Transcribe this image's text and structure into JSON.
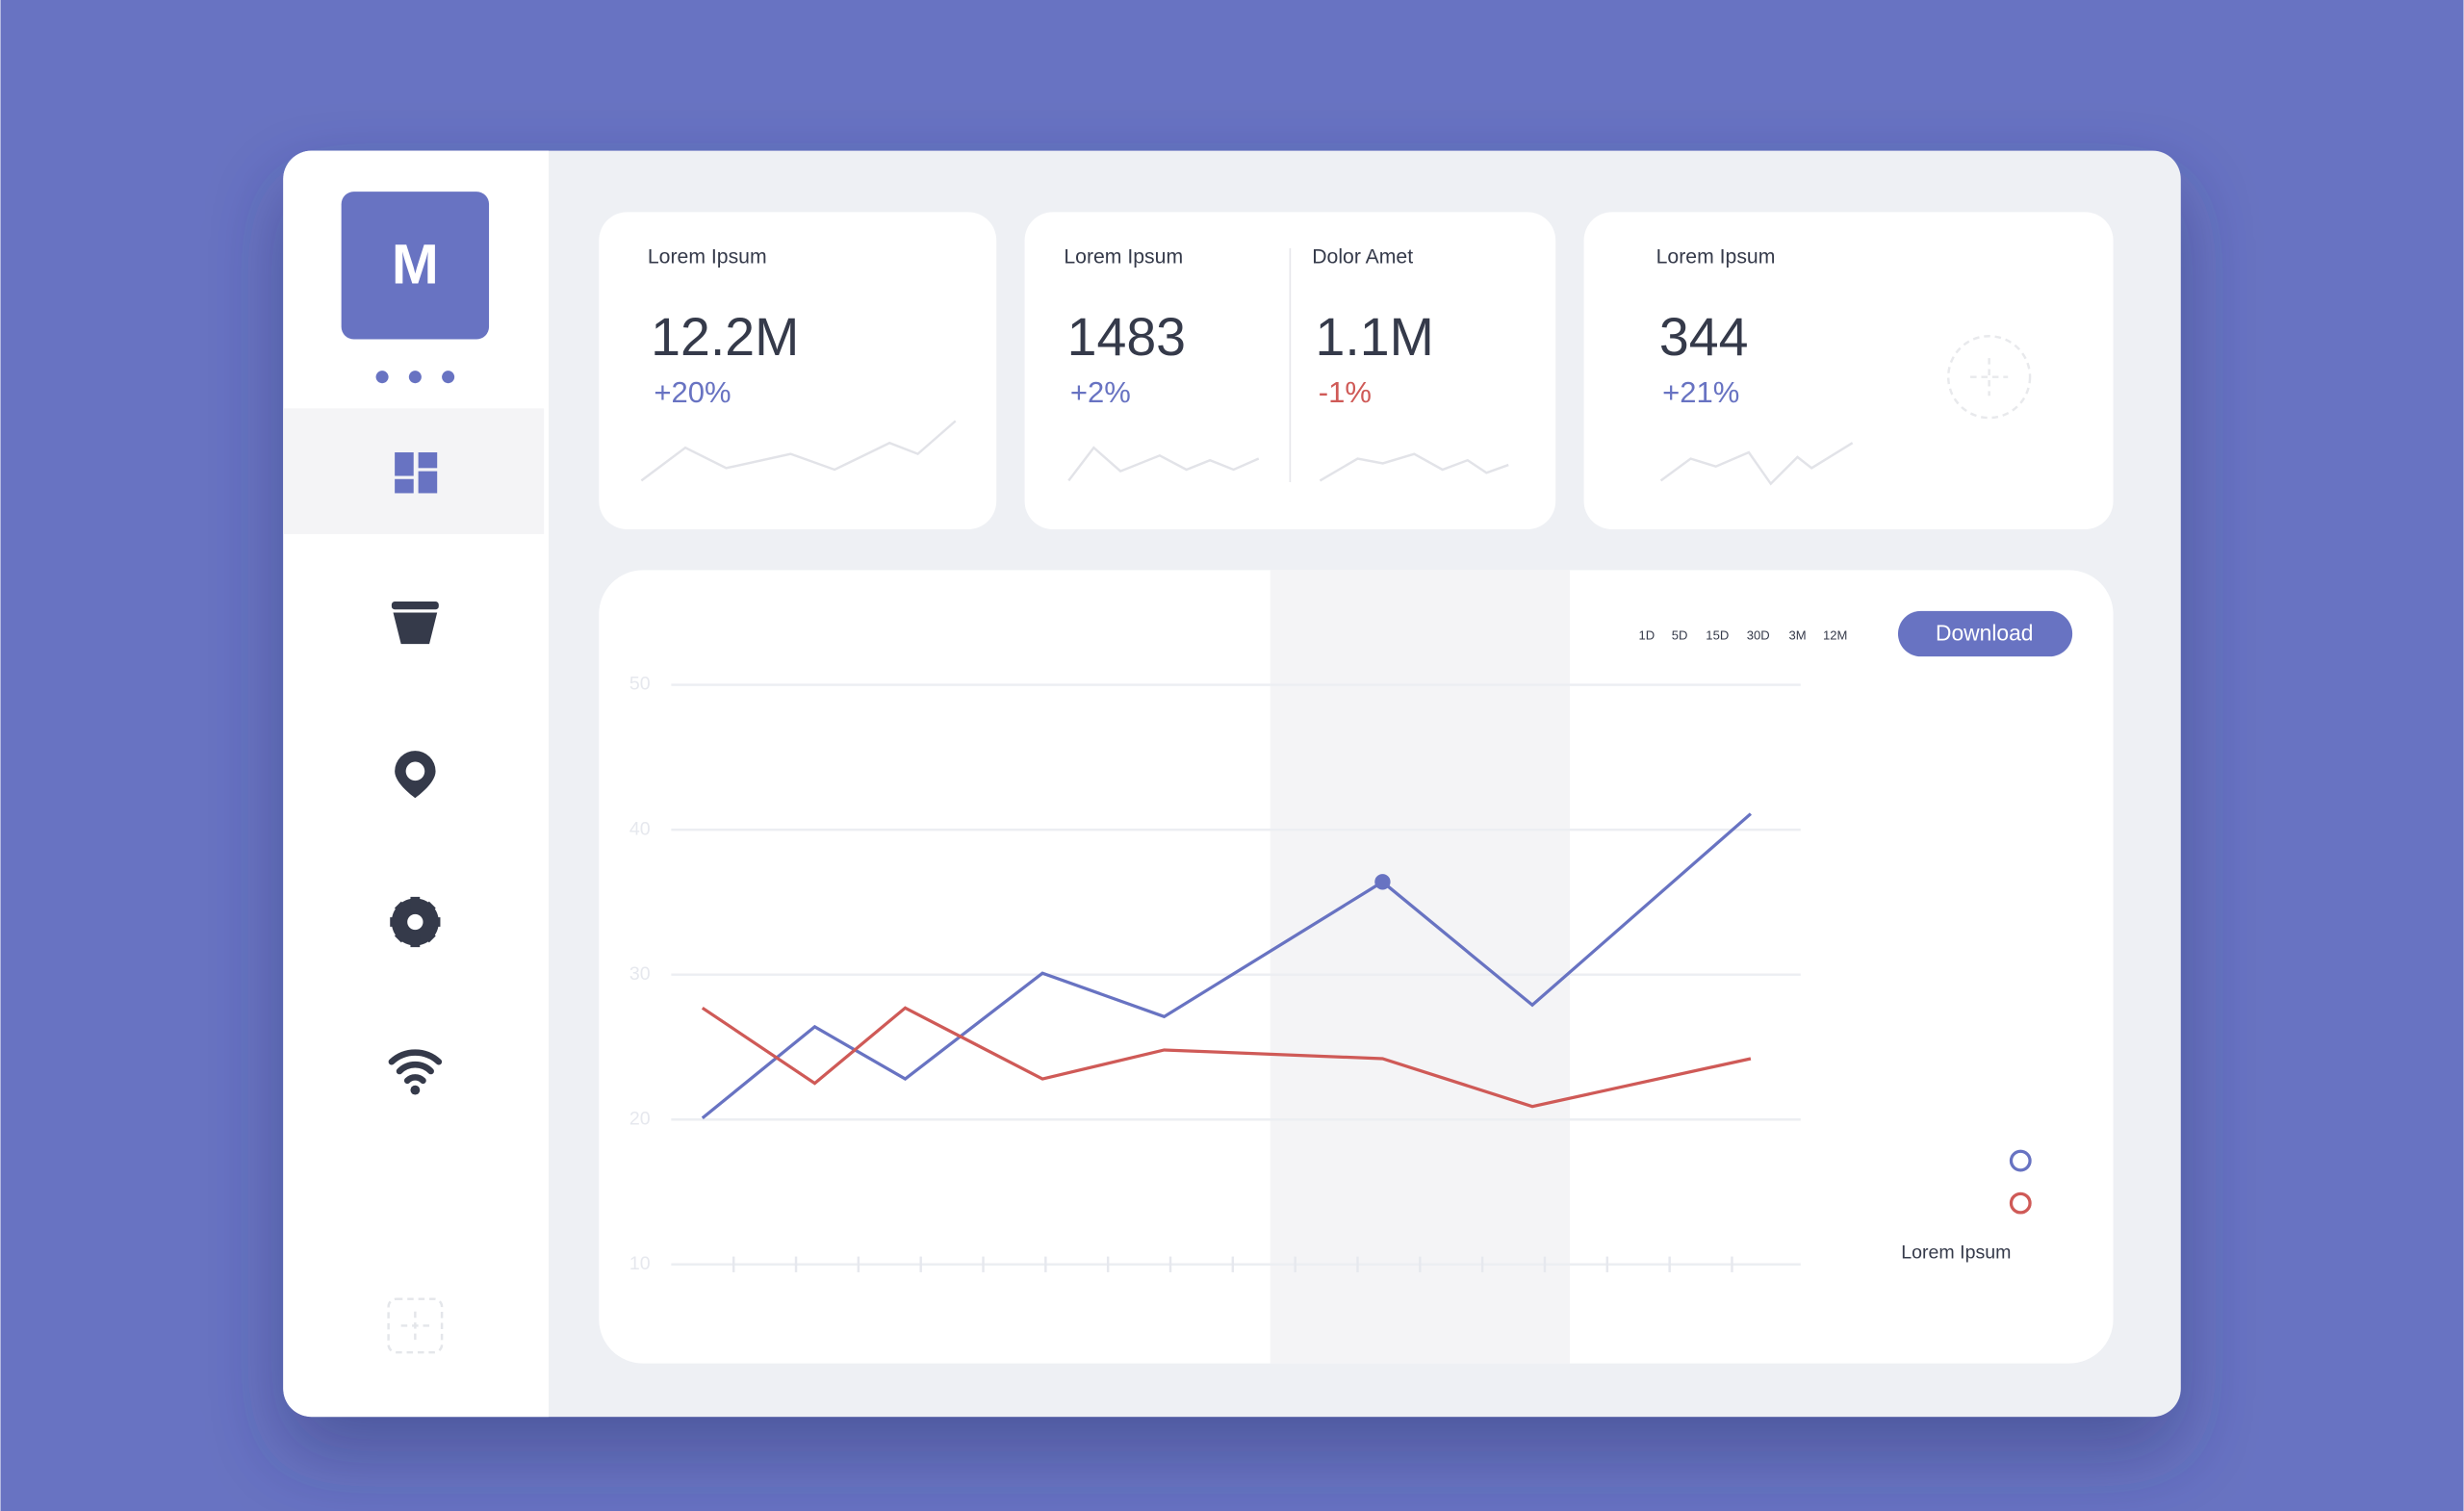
{
  "sidebar": {
    "logo": "M"
  },
  "cards": [
    {
      "metrics": [
        {
          "label": "Lorem Ipsum",
          "value": "12.2M",
          "change": "+20%",
          "color": "#6873c2"
        }
      ]
    },
    {
      "metrics": [
        {
          "label": "Lorem Ipsum",
          "value": "1483",
          "change": "+2%",
          "color": "#6873c2"
        },
        {
          "label": "Dolor Amet",
          "value": "1.1M",
          "change": "-1%",
          "color": "#cf5a57"
        }
      ]
    },
    {
      "metrics": [
        {
          "label": "Lorem Ipsum",
          "value": "344",
          "change": "+21%",
          "color": "#6873c2"
        }
      ]
    }
  ],
  "ranges": [
    "1D",
    "5D",
    "15D",
    "30D",
    "3M",
    "12M"
  ],
  "download": "Download",
  "chart_data": {
    "type": "line",
    "x": [
      -0.5,
      1.3,
      2.75,
      4.95,
      6.9,
      10.4,
      12.8,
      16.3
    ],
    "xlim": [
      -1.0,
      17.1
    ],
    "xticks": [
      0,
      1,
      2,
      3,
      4,
      5,
      6,
      7,
      8,
      9,
      10,
      11,
      12,
      13,
      14,
      15,
      16
    ],
    "ylim": [
      10,
      50
    ],
    "yticks": [
      10,
      20,
      30,
      40,
      50
    ],
    "grid": true,
    "highlight": [
      8.6,
      13.4
    ],
    "highlight_point": 5,
    "series": [
      {
        "color": "#6873c2",
        "values": [
          20.1,
          26.4,
          22.8,
          30.1,
          27.1,
          36.4,
          27.9,
          41.1
        ]
      },
      {
        "color": "#cf5a57",
        "values": [
          27.7,
          22.5,
          27.7,
          22.8,
          24.8,
          24.2,
          20.9,
          24.2
        ]
      }
    ],
    "legend_label": "Lorem Ipsum"
  }
}
